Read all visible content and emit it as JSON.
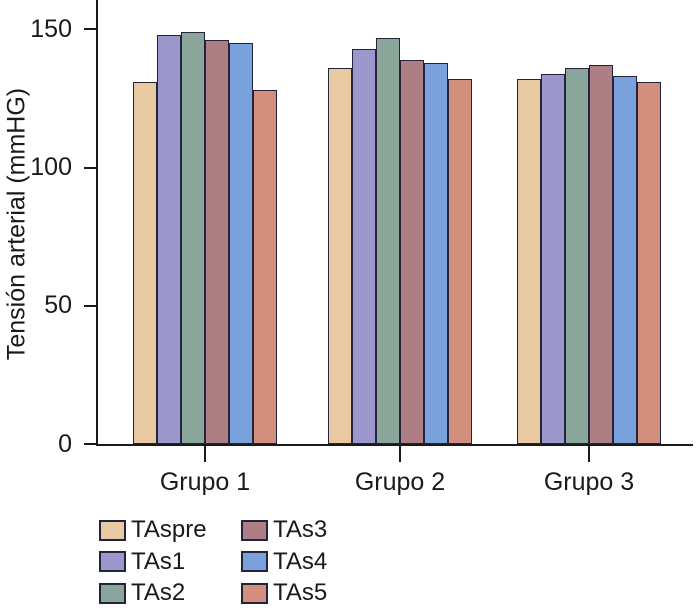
{
  "chart_data": {
    "type": "bar",
    "title": "",
    "xlabel": "",
    "ylabel": "Tensión arterial (mmHG)",
    "ylim": [
      0,
      160
    ],
    "yticks": [
      0,
      50,
      100,
      150
    ],
    "grid": false,
    "legend_position": "bottom-left",
    "categories": [
      "Grupo 1",
      "Grupo 2",
      "Grupo 3"
    ],
    "series": [
      {
        "name": "TAspre",
        "color": "#e9c9a1",
        "values": [
          131,
          136,
          132
        ]
      },
      {
        "name": "TAs1",
        "color": "#9b96cb",
        "values": [
          148,
          143,
          134
        ]
      },
      {
        "name": "TAs2",
        "color": "#8aa599",
        "values": [
          149,
          147,
          136
        ]
      },
      {
        "name": "TAs3",
        "color": "#ad7f84",
        "values": [
          146,
          139,
          137
        ]
      },
      {
        "name": "TAs4",
        "color": "#79a1dc",
        "values": [
          145,
          138,
          133
        ]
      },
      {
        "name": "TAs5",
        "color": "#d28f7d",
        "values": [
          128,
          132,
          131
        ]
      }
    ],
    "colors": {
      "axis": "#1a1a1a",
      "bar_border": "#23233a",
      "background": "#ffffff"
    }
  }
}
